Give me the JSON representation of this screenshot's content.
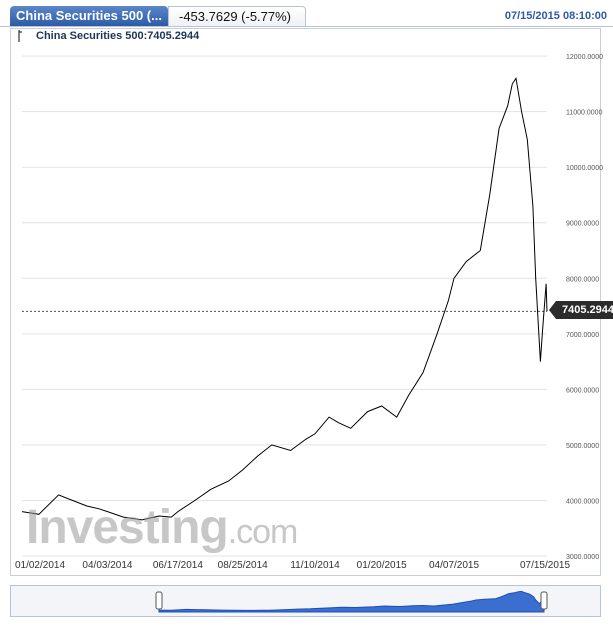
{
  "header": {
    "tab_title": "China Securities 500 (...",
    "change": "-453.7629 (-5.77%)",
    "datetime": "07/15/2015 08:10:00"
  },
  "quote_label": "China Securities 500:7405.2944",
  "watermark": {
    "brand": "Investing",
    "suffix": ".com"
  },
  "colors": {
    "line": "#000000",
    "accent": "#2d5ba6",
    "navigator_fill": "#3a6fd0",
    "grid": "#e3e3e3"
  },
  "icons": {
    "tool": "chart-tool-icon",
    "handle": "scroll-handle-icon"
  },
  "chart_data": {
    "type": "line",
    "x": [
      "2014-01-02",
      "2014-01-20",
      "2014-02-10",
      "2014-02-25",
      "2014-03-12",
      "2014-03-25",
      "2014-04-03",
      "2014-04-20",
      "2014-05-10",
      "2014-05-28",
      "2014-06-10",
      "2014-06-17",
      "2014-07-05",
      "2014-07-22",
      "2014-08-10",
      "2014-08-25",
      "2014-09-10",
      "2014-09-25",
      "2014-10-15",
      "2014-10-31",
      "2014-11-10",
      "2014-11-25",
      "2014-12-05",
      "2014-12-18",
      "2015-01-05",
      "2015-01-20",
      "2015-02-05",
      "2015-02-18",
      "2015-03-05",
      "2015-03-20",
      "2015-04-01",
      "2015-04-07",
      "2015-04-20",
      "2015-05-05",
      "2015-05-15",
      "2015-05-25",
      "2015-06-03",
      "2015-06-08",
      "2015-06-12",
      "2015-06-18",
      "2015-06-24",
      "2015-06-30",
      "2015-07-03",
      "2015-07-08",
      "2015-07-10",
      "2015-07-14",
      "2015-07-15"
    ],
    "y": [
      3800,
      3750,
      4100,
      4000,
      3900,
      3850,
      3800,
      3700,
      3650,
      3720,
      3700,
      3800,
      4000,
      4200,
      4350,
      4550,
      4800,
      5000,
      4900,
      5100,
      5200,
      5500,
      5400,
      5300,
      5600,
      5700,
      5500,
      5900,
      6300,
      7000,
      7600,
      8000,
      8300,
      8500,
      9500,
      10700,
      11100,
      11500,
      11600,
      11000,
      10500,
      9300,
      8000,
      6500,
      7000,
      7900,
      7405.2944
    ],
    "current_value": 7405.2944,
    "current_label": "7405.2944",
    "y_ticks": [
      "12000.0000",
      "11000.0000",
      "10000.0000",
      "9000.0000",
      "8000.0000",
      "7000.0000",
      "6000.0000",
      "5000.0000",
      "4000.0000",
      "3000.0000"
    ],
    "x_ticks": [
      "01/02/2014",
      "04/03/2014",
      "06/17/2014",
      "08/25/2014",
      "11/10/2014",
      "01/20/2015",
      "04/07/2015",
      "07/15/2015"
    ],
    "ylim": [
      3000,
      12200
    ],
    "grid": true,
    "title": ""
  }
}
